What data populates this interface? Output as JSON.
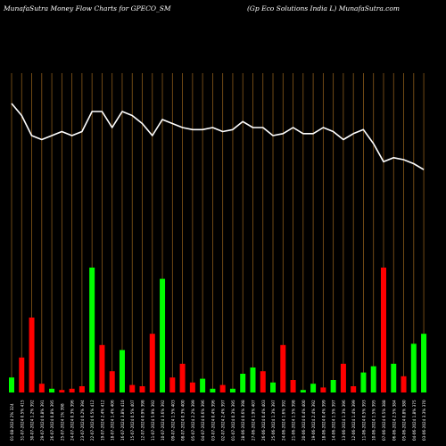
{
  "header": {
    "left_title": "MunafaSutra  Money Flow  Charts for GPECO_SM",
    "right_title": "(Gp Eco   Solutions India  L) MunafaSutra.com"
  },
  "colors": {
    "background": "#000000",
    "grid": "#8a5a1a",
    "up_bar": "#00ff00",
    "down_bar": "#ff0000",
    "line": "#ffffff",
    "tick_text": "#ffffff"
  },
  "chart_data": {
    "type": "bar",
    "title": "",
    "xlabel": "",
    "ylabel": "",
    "ylim": [
      0,
      1
    ],
    "grid": true,
    "categories": [
      "01-08-2024 2% 324",
      "31-07-2024 0.5% 415",
      "30-07-2024 1.2% 392",
      "29-07-2024 0.8% 391",
      "26-07-2024 0.8% 395",
      "25-07-2024 1% 398",
      "24-07-2024 0.3% 396",
      "23-07-2024 0.2% 394",
      "22-07-2024 6.5% 412",
      "19-07-2024 2.4% 412",
      "18-07-2024 1.4% 406",
      "16-07-2024 3.8% 410",
      "15-07-2024 0.5% 407",
      "12-07-2024 0.9% 398",
      "11-07-2024 5.9% 392",
      "10-07-2024 3.6% 392",
      "09-07-2024 1.5% 403",
      "08-07-2024 0.3% 400",
      "05-07-2024 2.2% 399",
      "04-07-2024 0.6% 396",
      "03-07-2024 0.4% 396",
      "02-07-2024 2.4% 397",
      "01-07-2024 0.3% 395",
      "28-06-2024 0.6% 398",
      "27-06-2024 1.9% 407",
      "26-06-2024 0.4% 403",
      "25-06-2024 1.3% 397",
      "24-06-2024 1.6% 392",
      "21-06-2024 1.5% 398",
      "20-06-2024 0.4% 400",
      "19-06-2024 2.4% 392",
      "18-06-2024 0.4% 399",
      "14-06-2024 1.5% 397",
      "13-06-2024 1.3% 396",
      "12-06-2024 1.4% 399",
      "11-06-2024 0.5% 393",
      "10-06-2024 1.5% 395",
      "07-06-2024 6.5% 388",
      "06-06-2024 2.5% 384",
      "05-06-2024 0.8% 380",
      "04-06-2024 1.8% 375",
      "03-06-2024 3.3% 370"
    ],
    "series": [
      {
        "values": [
          0.12,
          0.28,
          0.6,
          0.07,
          0.03,
          0.02,
          0.03,
          0.05,
          1.0,
          0.38,
          0.17,
          0.34,
          0.06,
          0.05,
          0.47,
          0.91,
          0.12,
          0.23,
          0.08,
          0.11,
          0.03,
          0.06,
          0.03,
          0.15,
          0.2,
          0.17,
          0.08,
          0.38,
          0.1,
          0.02,
          0.07,
          0.04,
          0.1,
          0.23,
          0.05,
          0.16,
          0.21,
          1.0,
          0.23,
          0.13,
          0.39,
          0.47
        ],
        "colors": [
          "up",
          "down",
          "down",
          "down",
          "up",
          "down",
          "down",
          "down",
          "up",
          "down",
          "down",
          "up",
          "down",
          "down",
          "down",
          "up",
          "down",
          "down",
          "down",
          "up",
          "up",
          "down",
          "up",
          "up",
          "up",
          "down",
          "up",
          "down",
          "down",
          "up",
          "up",
          "down",
          "up",
          "down",
          "down",
          "up",
          "up",
          "down",
          "up",
          "down",
          "up",
          "up"
        ]
      },
      {
        "type": "line",
        "values": [
          0.72,
          0.69,
          0.64,
          0.63,
          0.64,
          0.65,
          0.64,
          0.65,
          0.7,
          0.7,
          0.66,
          0.7,
          0.69,
          0.67,
          0.64,
          0.68,
          0.67,
          0.66,
          0.655,
          0.655,
          0.66,
          0.65,
          0.655,
          0.675,
          0.66,
          0.66,
          0.64,
          0.645,
          0.66,
          0.645,
          0.645,
          0.66,
          0.65,
          0.63,
          0.645,
          0.655,
          0.62,
          0.575,
          0.585,
          0.58,
          0.57,
          0.555
        ]
      }
    ]
  }
}
